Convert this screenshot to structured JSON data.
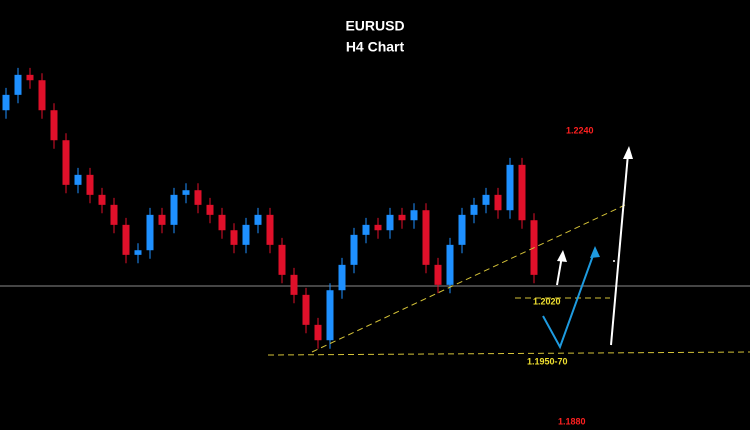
{
  "chart_data": {
    "type": "candlestick",
    "title": "EURUSD",
    "subtitle": "H4 Chart",
    "up_color": "#1e90ff",
    "down_color": "#e0102a",
    "ylim": [
      1.18513,
      1.24103
    ],
    "open": [
      1.2267,
      1.2287,
      1.2313,
      1.2306,
      1.2267,
      1.2228,
      1.217,
      1.2183,
      1.2157,
      1.2144,
      1.2118,
      1.2079,
      1.2085,
      1.2131,
      1.2118,
      1.2157,
      1.2163,
      1.2144,
      1.2131,
      1.2111,
      1.2092,
      1.2118,
      1.2131,
      1.2092,
      1.2053,
      1.2027,
      1.1988,
      1.1968,
      1.2033,
      1.2066,
      1.2105,
      1.2118,
      1.2111,
      1.2131,
      1.2124,
      1.2137,
      1.2066,
      1.204,
      1.2092,
      1.2131,
      1.2144,
      1.2157,
      1.2137,
      1.2196,
      1.2124
    ],
    "high": [
      1.2296,
      1.2322,
      1.2322,
      1.2315,
      1.2276,
      1.2237,
      1.2192,
      1.2192,
      1.2166,
      1.2153,
      1.2127,
      1.2094,
      1.214,
      1.214,
      1.2166,
      1.2172,
      1.2172,
      1.2153,
      1.214,
      1.212,
      1.2127,
      1.214,
      1.214,
      1.2101,
      1.2062,
      1.2036,
      1.1997,
      1.2042,
      1.2075,
      1.2114,
      1.2127,
      1.2127,
      1.214,
      1.214,
      1.2146,
      1.2146,
      1.2075,
      1.2101,
      1.214,
      1.2153,
      1.2166,
      1.2166,
      1.2205,
      1.2205,
      1.2133
    ],
    "low": [
      1.2256,
      1.2276,
      1.2295,
      1.2256,
      1.2217,
      1.2159,
      1.2159,
      1.2146,
      1.2133,
      1.2107,
      1.2068,
      1.2068,
      1.2074,
      1.2107,
      1.2107,
      1.2146,
      1.2133,
      1.212,
      1.21,
      1.2081,
      1.2081,
      1.2107,
      1.2081,
      1.2042,
      1.2016,
      1.1977,
      1.1957,
      1.1957,
      1.2022,
      1.2055,
      1.2094,
      1.21,
      1.21,
      1.2113,
      1.2113,
      1.2055,
      1.2029,
      1.2029,
      1.2081,
      1.212,
      1.2133,
      1.2126,
      1.2126,
      1.2113,
      1.2042
    ],
    "close": [
      1.2287,
      1.2313,
      1.2306,
      1.2267,
      1.2228,
      1.217,
      1.2183,
      1.2157,
      1.2144,
      1.2118,
      1.2079,
      1.2085,
      1.2131,
      1.2118,
      1.2157,
      1.2163,
      1.2144,
      1.2131,
      1.2111,
      1.2092,
      1.2118,
      1.2131,
      1.2092,
      1.2053,
      1.2027,
      1.1988,
      1.1968,
      1.2033,
      1.2066,
      1.2105,
      1.2118,
      1.2111,
      1.2131,
      1.2124,
      1.2137,
      1.2066,
      1.204,
      1.2092,
      1.2131,
      1.2144,
      1.2157,
      1.2137,
      1.2196,
      1.2124,
      1.2053
    ],
    "annotations": [
      "1.2240",
      "1.2020",
      "1.1950-70",
      "1.1880"
    ]
  }
}
